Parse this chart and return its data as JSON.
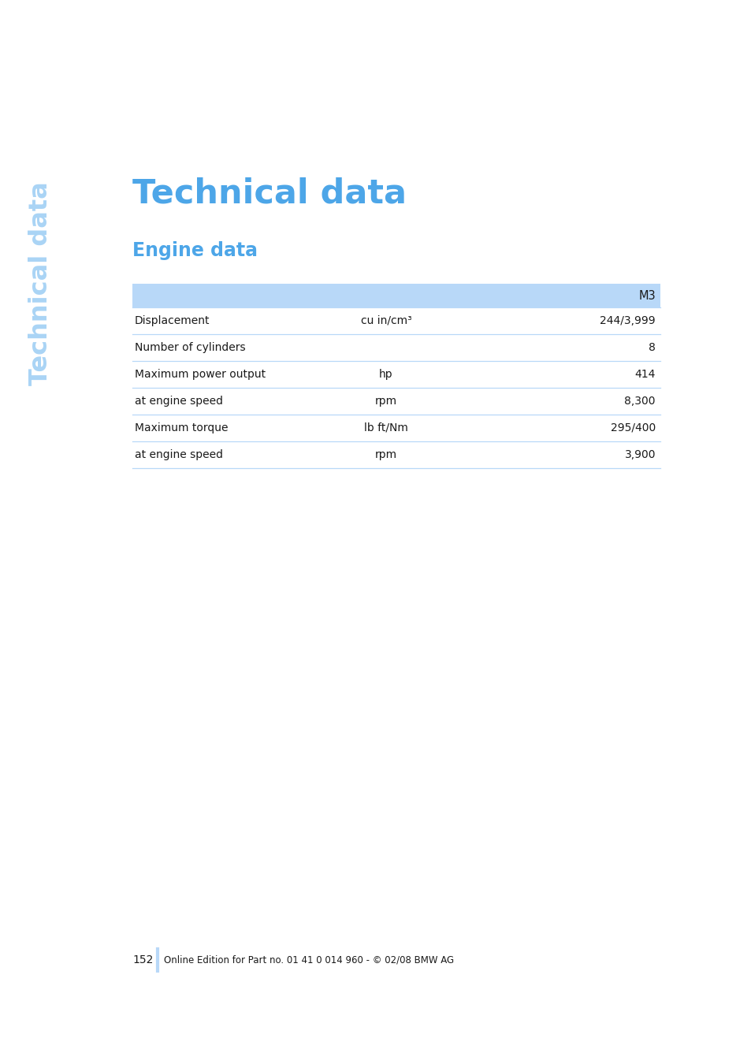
{
  "page_title": "Technical data",
  "section_title": "Engine data",
  "sidebar_text": "Technical data",
  "blue_color": "#4da6e8",
  "light_blue_color": "#b8d8f8",
  "header_bg_color": "#b8d8f8",
  "dark_text_color": "#1a1a1a",
  "table_header": "M3",
  "table_rows": [
    {
      "label": "Displacement",
      "unit": "cu in/cm³",
      "value": "244/3,999"
    },
    {
      "label": "Number of cylinders",
      "unit": "",
      "value": "8"
    },
    {
      "label": "Maximum power output",
      "unit": "hp",
      "value": "414"
    },
    {
      "label": "at engine speed",
      "unit": "rpm",
      "value": "8,300"
    },
    {
      "label": "Maximum torque",
      "unit": "lb ft/Nm",
      "value": "295/400"
    },
    {
      "label": "at engine speed",
      "unit": "rpm",
      "value": "3,900"
    }
  ],
  "page_number": "152",
  "footer_text": "Online Edition for Part no. 01 41 0 014 960 - © 02/08 BMW AG",
  "background_color": "#ffffff",
  "sidebar_color": "#aad4f5"
}
